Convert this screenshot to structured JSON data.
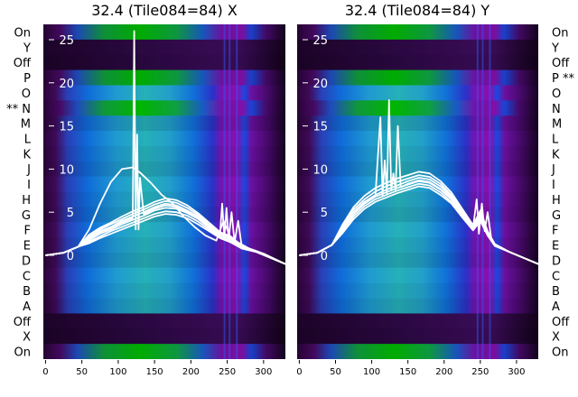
{
  "chart_data": [
    {
      "type": "heatmap",
      "title": "32.4 (Tile084=84) X",
      "xlabel": "",
      "ylabel": "",
      "xlim": [
        -3,
        330
      ],
      "xticks": [
        0,
        50,
        100,
        150,
        200,
        250,
        300
      ],
      "yticks": [
        0,
        5,
        10,
        15,
        20,
        25
      ],
      "row_labels": [
        "On",
        "Y",
        "Off",
        "P",
        "O",
        "** N",
        "M",
        "L",
        "K",
        "J",
        "I",
        "H",
        "G",
        "F",
        "E",
        "D",
        "C",
        "B",
        "A",
        "Off",
        "X",
        "On"
      ],
      "overlay_series": [
        {
          "x": [
            0,
            25,
            45,
            60,
            75,
            90,
            105,
            120,
            130,
            145,
            160,
            175,
            190,
            205,
            220,
            235,
            245,
            255,
            265,
            280,
            300,
            330
          ],
          "y": [
            0,
            0.3,
            1.0,
            3.0,
            6.0,
            8.5,
            10.0,
            10.2,
            9.6,
            8.4,
            7.0,
            6.0,
            4.5,
            3.3,
            2.3,
            1.7,
            4.0,
            2.0,
            1.5,
            0.8,
            0.2,
            -1.0
          ]
        },
        {
          "x": [
            0,
            25,
            45,
            60,
            75,
            90,
            105,
            120,
            135,
            150,
            165,
            180,
            195,
            210,
            225,
            240,
            255,
            270,
            290,
            330
          ],
          "y": [
            0,
            0.3,
            1.0,
            2.0,
            2.8,
            3.3,
            4.0,
            4.5,
            5.0,
            5.6,
            6.0,
            5.8,
            5.2,
            4.5,
            3.4,
            2.5,
            2.0,
            1.0,
            0.4,
            -1.0
          ]
        },
        {
          "x": [
            0,
            25,
            45,
            60,
            75,
            90,
            105,
            120,
            135,
            150,
            165,
            180,
            195,
            210,
            225,
            240,
            255,
            270,
            290,
            330
          ],
          "y": [
            0,
            0.3,
            1.0,
            1.8,
            2.5,
            3.0,
            3.6,
            4.1,
            4.6,
            5.2,
            5.5,
            5.4,
            4.9,
            4.2,
            3.2,
            2.3,
            1.8,
            0.9,
            0.4,
            -1.0
          ]
        },
        {
          "x": [
            0,
            25,
            45,
            60,
            75,
            90,
            105,
            120,
            135,
            150,
            165,
            180,
            195,
            210,
            225,
            240,
            255,
            270,
            290,
            330
          ],
          "y": [
            0,
            0.3,
            1.0,
            1.6,
            2.2,
            2.8,
            3.3,
            3.8,
            4.3,
            4.8,
            5.1,
            5.0,
            4.6,
            3.9,
            3.0,
            2.1,
            1.6,
            0.8,
            0.4,
            -1.0
          ]
        },
        {
          "x": [
            0,
            25,
            45,
            60,
            75,
            90,
            105,
            120,
            135,
            150,
            165,
            180,
            195,
            210,
            225,
            240,
            255,
            270,
            290,
            330
          ],
          "y": [
            0,
            0.3,
            1.0,
            2.2,
            3.0,
            3.6,
            4.2,
            4.8,
            5.3,
            5.9,
            6.3,
            6.1,
            5.5,
            4.7,
            3.6,
            2.6,
            2.1,
            1.0,
            0.4,
            -1.0
          ]
        },
        {
          "x": [
            0,
            25,
            45,
            60,
            75,
            90,
            105,
            120,
            135,
            150,
            165,
            180,
            195,
            210,
            225,
            240,
            255,
            270,
            290,
            330
          ],
          "y": [
            0,
            0.3,
            1.0,
            1.4,
            2.0,
            2.5,
            3.0,
            3.5,
            4.0,
            4.5,
            4.8,
            4.7,
            4.3,
            3.6,
            2.8,
            2.0,
            1.5,
            0.8,
            0.4,
            -1.0
          ]
        },
        {
          "x": [
            0,
            25,
            45,
            60,
            75,
            90,
            105,
            120,
            122,
            124,
            126,
            128,
            130,
            135,
            150,
            165,
            180,
            195,
            210,
            225,
            240,
            243,
            246,
            249,
            252,
            256,
            260,
            265,
            270,
            290,
            330
          ],
          "y": [
            0,
            0.3,
            1.0,
            2.0,
            2.7,
            3.2,
            3.8,
            4.3,
            26.0,
            3.0,
            14.0,
            3.0,
            9.0,
            4.8,
            5.4,
            5.8,
            5.6,
            5.0,
            4.3,
            3.3,
            2.4,
            6.0,
            2.0,
            5.5,
            1.8,
            5.0,
            1.5,
            4.0,
            1.0,
            0.4,
            -1.0
          ]
        },
        {
          "x": [
            0,
            25,
            45,
            60,
            75,
            90,
            105,
            120,
            135,
            150,
            165,
            180,
            195,
            210,
            225,
            240,
            255,
            270,
            290,
            330
          ],
          "y": [
            0,
            0.3,
            1.0,
            2.4,
            3.2,
            3.8,
            4.5,
            5.1,
            5.6,
            6.2,
            6.6,
            6.4,
            5.8,
            4.9,
            3.8,
            2.7,
            2.2,
            1.1,
            0.5,
            -1.0
          ]
        }
      ]
    },
    {
      "type": "heatmap",
      "title": "32.4 (Tile084=84) Y",
      "xlabel": "",
      "ylabel": "",
      "xlim": [
        -3,
        330
      ],
      "xticks": [
        0,
        50,
        100,
        150,
        200,
        250,
        300
      ],
      "yticks": [
        0,
        5,
        10,
        15,
        20,
        25
      ],
      "row_labels": [
        "On",
        "Y",
        "Off",
        "P **",
        "O",
        "N",
        "M",
        "L",
        "K",
        "J",
        "I",
        "H",
        "G",
        "F",
        "E",
        "D",
        "C",
        "B",
        "A",
        "Off",
        "X",
        "On"
      ],
      "overlay_series": [
        {
          "x": [
            0,
            25,
            45,
            60,
            75,
            90,
            105,
            120,
            135,
            150,
            165,
            180,
            195,
            210,
            225,
            240,
            250,
            260,
            270,
            290,
            330
          ],
          "y": [
            0,
            0.3,
            1.2,
            3.0,
            4.8,
            6.0,
            6.8,
            7.3,
            7.8,
            8.2,
            8.6,
            8.4,
            7.6,
            6.5,
            4.8,
            3.2,
            4.5,
            2.5,
            1.2,
            0.4,
            -1.0
          ]
        },
        {
          "x": [
            0,
            25,
            45,
            60,
            75,
            90,
            105,
            120,
            135,
            150,
            165,
            180,
            195,
            210,
            225,
            240,
            250,
            260,
            270,
            290,
            330
          ],
          "y": [
            0,
            0.3,
            1.2,
            3.2,
            5.0,
            6.2,
            7.0,
            7.6,
            8.1,
            8.6,
            9.0,
            8.8,
            8.0,
            6.8,
            5.0,
            3.3,
            4.8,
            2.6,
            1.2,
            0.4,
            -1.0
          ]
        },
        {
          "x": [
            0,
            25,
            45,
            60,
            75,
            90,
            105,
            120,
            135,
            150,
            165,
            180,
            195,
            210,
            225,
            240,
            250,
            260,
            270,
            290,
            330
          ],
          "y": [
            0,
            0.3,
            1.2,
            2.8,
            4.5,
            5.7,
            6.5,
            7.0,
            7.5,
            7.9,
            8.3,
            8.1,
            7.3,
            6.2,
            4.6,
            3.0,
            4.2,
            2.4,
            1.1,
            0.4,
            -1.0
          ]
        },
        {
          "x": [
            0,
            25,
            45,
            60,
            75,
            90,
            105,
            120,
            135,
            150,
            165,
            180,
            195,
            210,
            225,
            240,
            250,
            260,
            270,
            290,
            330
          ],
          "y": [
            0,
            0.3,
            1.2,
            2.6,
            4.2,
            5.4,
            6.2,
            6.7,
            7.2,
            7.6,
            8.0,
            7.8,
            7.0,
            6.0,
            4.4,
            2.9,
            4.0,
            2.3,
            1.1,
            0.4,
            -1.0
          ]
        },
        {
          "x": [
            0,
            25,
            45,
            60,
            75,
            90,
            105,
            120,
            135,
            150,
            165,
            180,
            195,
            210,
            225,
            240,
            250,
            260,
            270,
            290,
            330
          ],
          "y": [
            0,
            0.3,
            1.2,
            3.4,
            5.3,
            6.5,
            7.4,
            8.0,
            8.5,
            8.9,
            9.3,
            9.1,
            8.3,
            7.0,
            5.2,
            3.4,
            5.0,
            2.7,
            1.3,
            0.4,
            -1.0
          ]
        },
        {
          "x": [
            0,
            25,
            45,
            60,
            75,
            90,
            105,
            112,
            115,
            118,
            121,
            124,
            127,
            130,
            133,
            136,
            140,
            150,
            165,
            180,
            195,
            210,
            225,
            240,
            245,
            248,
            252,
            256,
            260,
            265,
            270,
            290,
            330
          ],
          "y": [
            0,
            0.3,
            1.2,
            3.0,
            4.8,
            6.0,
            6.8,
            16.0,
            7.0,
            11.0,
            7.2,
            18.0,
            7.5,
            9.5,
            7.6,
            15.0,
            7.9,
            8.3,
            8.7,
            8.5,
            7.7,
            6.6,
            4.9,
            3.2,
            6.5,
            2.5,
            6.0,
            2.8,
            5.0,
            2.0,
            1.2,
            0.4,
            -1.0
          ]
        },
        {
          "x": [
            0,
            25,
            45,
            60,
            75,
            90,
            105,
            120,
            135,
            150,
            165,
            180,
            195,
            210,
            225,
            240,
            250,
            260,
            270,
            290,
            330
          ],
          "y": [
            0,
            0.3,
            1.2,
            3.6,
            5.6,
            6.9,
            7.8,
            8.4,
            8.9,
            9.3,
            9.7,
            9.5,
            8.6,
            7.3,
            5.4,
            3.5,
            5.2,
            2.8,
            1.3,
            0.4,
            -1.0
          ]
        }
      ]
    }
  ]
}
